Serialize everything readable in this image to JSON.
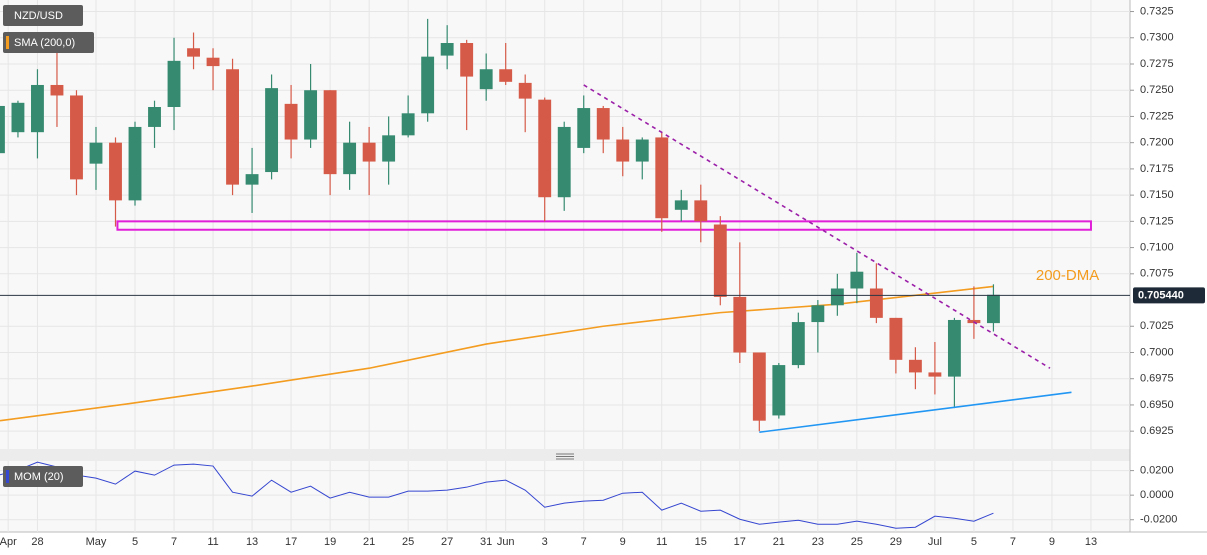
{
  "chart_data": {
    "type": "candlestick",
    "title": "NZD/USD",
    "x": [
      -1,
      0,
      1,
      2,
      3,
      4,
      5,
      6,
      7,
      8,
      9,
      10,
      11,
      12,
      13,
      14,
      15,
      16,
      17,
      18,
      19,
      20,
      21,
      22,
      23,
      24,
      25,
      26,
      27,
      28,
      29,
      30,
      31,
      32,
      33,
      34,
      35,
      36,
      37,
      38,
      39,
      40,
      41,
      42,
      43,
      44,
      45,
      46,
      47,
      48,
      49,
      50
    ],
    "open": [
      0.719,
      0.721,
      0.721,
      0.7255,
      0.7245,
      0.718,
      0.72,
      0.7145,
      0.7215,
      0.7234,
      0.729,
      0.7281,
      0.727,
      0.716,
      0.7172,
      0.7237,
      0.7203,
      0.725,
      0.717,
      0.72,
      0.7182,
      0.7207,
      0.7228,
      0.7283,
      0.7295,
      0.7251,
      0.727,
      0.7257,
      0.7241,
      0.7148,
      0.7195,
      0.7233,
      0.7203,
      0.7182,
      0.7205,
      0.7136,
      0.7145,
      0.7122,
      0.7053,
      0.7,
      0.694,
      0.6988,
      0.7029,
      0.7045,
      0.7061,
      0.7061,
      0.7033,
      0.6993,
      0.6981,
      0.6977,
      0.7031,
      0.7028
    ],
    "high": [
      0.7245,
      0.724,
      0.727,
      0.729,
      0.725,
      0.7215,
      0.7205,
      0.722,
      0.724,
      0.73,
      0.7305,
      0.729,
      0.728,
      0.7195,
      0.7265,
      0.7255,
      0.7275,
      0.725,
      0.722,
      0.7215,
      0.7225,
      0.7245,
      0.7318,
      0.7312,
      0.7298,
      0.7285,
      0.7295,
      0.7265,
      0.7243,
      0.722,
      0.7245,
      0.7235,
      0.7215,
      0.7205,
      0.721,
      0.7155,
      0.716,
      0.713,
      0.7105,
      0.7,
      0.699,
      0.7038,
      0.705,
      0.7075,
      0.7095,
      0.7085,
      0.7033,
      0.7005,
      0.701,
      0.7033,
      0.7063,
      0.7065
    ],
    "low": [
      0.718,
      0.7205,
      0.7185,
      0.7215,
      0.715,
      0.7155,
      0.712,
      0.714,
      0.7195,
      0.7212,
      0.727,
      0.725,
      0.715,
      0.7133,
      0.7165,
      0.7185,
      0.7195,
      0.715,
      0.7155,
      0.715,
      0.716,
      0.7205,
      0.722,
      0.727,
      0.7212,
      0.724,
      0.7255,
      0.721,
      0.7125,
      0.7135,
      0.719,
      0.719,
      0.7168,
      0.7165,
      0.7115,
      0.7125,
      0.7105,
      0.7045,
      0.699,
      0.6925,
      0.6937,
      0.6985,
      0.7,
      0.7035,
      0.7047,
      0.7028,
      0.698,
      0.6965,
      0.696,
      0.6947,
      0.7013,
      0.702
    ],
    "close": [
      0.7235,
      0.7238,
      0.7255,
      0.7245,
      0.7165,
      0.72,
      0.7145,
      0.7215,
      0.7234,
      0.7278,
      0.7282,
      0.7273,
      0.716,
      0.717,
      0.7252,
      0.7203,
      0.725,
      0.717,
      0.72,
      0.7182,
      0.7207,
      0.7228,
      0.7282,
      0.7295,
      0.7263,
      0.727,
      0.7258,
      0.7242,
      0.7148,
      0.7215,
      0.7233,
      0.7203,
      0.7182,
      0.7203,
      0.7128,
      0.7145,
      0.7125,
      0.7053,
      0.7,
      0.6935,
      0.6988,
      0.7029,
      0.7045,
      0.7061,
      0.7077,
      0.7033,
      0.6993,
      0.6981,
      0.6977,
      0.7031,
      0.7028,
      0.7055
    ],
    "up_color": "#358a70",
    "down_color": "#d65a48",
    "xlim": [
      -0.92,
      57.0
    ],
    "ylim": [
      0.6908,
      0.7336
    ],
    "yticks": [
      0.7325,
      {
        "value": 0.73,
        "label": "0.7300"
      },
      0.7275,
      {
        "value": 0.725,
        "label": "0.7250"
      },
      0.7225,
      {
        "value": 0.72,
        "label": "0.7200"
      },
      0.7175,
      {
        "value": 0.715,
        "label": "0.7150"
      },
      0.7125,
      {
        "value": 0.71,
        "label": "0.7100"
      },
      0.7075,
      0.7025,
      {
        "value": 0.7,
        "label": "0.7000"
      },
      0.6975,
      {
        "value": 0.695,
        "label": "0.6950"
      },
      0.6925
    ],
    "xticks": [
      {
        "value": -0.5,
        "label": "Apr"
      },
      {
        "value": 1,
        "label": "28"
      },
      {
        "value": 4,
        "label": "May"
      },
      {
        "value": 6,
        "label": "5"
      },
      {
        "value": 8,
        "label": "7"
      },
      {
        "value": 10,
        "label": "11"
      },
      {
        "value": 12,
        "label": "13"
      },
      {
        "value": 14,
        "label": "17"
      },
      {
        "value": 16,
        "label": "19"
      },
      {
        "value": 18,
        "label": "21"
      },
      {
        "value": 20,
        "label": "25"
      },
      {
        "value": 22,
        "label": "27"
      },
      {
        "value": 24,
        "label": "31"
      },
      {
        "value": 25,
        "label": "Jun"
      },
      {
        "value": 27,
        "label": "3"
      },
      {
        "value": 29,
        "label": "7"
      },
      {
        "value": 31,
        "label": "9"
      },
      {
        "value": 33,
        "label": "11"
      },
      {
        "value": 35,
        "label": "15"
      },
      {
        "value": 37,
        "label": "17"
      },
      {
        "value": 39,
        "label": "21"
      },
      {
        "value": 41,
        "label": "23"
      },
      {
        "value": 43,
        "label": "25"
      },
      {
        "value": 45,
        "label": "29"
      },
      {
        "value": 47,
        "label": "Jul"
      },
      {
        "value": 49,
        "label": "5"
      },
      {
        "value": 51,
        "label": "7"
      },
      {
        "value": 53,
        "label": "9"
      },
      {
        "value": 55,
        "label": "13"
      }
    ],
    "grid": true,
    "current_price": {
      "value": 0.70544,
      "label": "0.705440"
    },
    "sma": {
      "name": "SMA (200,0)",
      "color": "#f39c1f",
      "x": [
        -0.92,
        6,
        12,
        18,
        24,
        30,
        36,
        42,
        50
      ],
      "values": [
        0.6935,
        0.6952,
        0.6968,
        0.6985,
        0.7008,
        0.7025,
        0.7038,
        0.7046,
        0.7063
      ]
    },
    "annotations": [
      {
        "text": "200-DMA",
        "x": 53.8,
        "y": 0.7073,
        "color": "#f39c1f"
      }
    ],
    "trendlines": [
      {
        "x": [
          29,
          52.9
        ],
        "values": [
          0.7255,
          0.6985
        ],
        "color": "#9b1fa8",
        "dashed": true
      },
      {
        "x": [
          38,
          54
        ],
        "values": [
          0.6924,
          0.6962
        ],
        "color": "#2196f3",
        "dashed": false
      }
    ],
    "zone": {
      "x": [
        5.1,
        55
      ],
      "values": [
        0.7117,
        0.7125
      ],
      "color": "#e020d8"
    },
    "momentum": {
      "name": "MOM (20)",
      "color": "#3546d0",
      "values": [
        0.0163,
        0.0204,
        0.0269,
        0.0229,
        0.0163,
        0.0139,
        0.009,
        0.0196,
        0.0163,
        0.0245,
        0.0253,
        0.0237,
        0.0024,
        -0.0008,
        0.0122,
        0.0024,
        0.0073,
        -0.0024,
        0.0024,
        -0.0016,
        -0.0016,
        0.0033,
        0.0033,
        0.0041,
        0.0065,
        0.0106,
        0.0122,
        0.0041,
        -0.0098,
        -0.0065,
        -0.0049,
        -0.0041,
        0.0016,
        0.0024,
        -0.0122,
        -0.0065,
        -0.0131,
        -0.0122,
        -0.0196,
        -0.0237,
        -0.022,
        -0.0204,
        -0.0237,
        -0.0237,
        -0.0212,
        -0.0237,
        -0.0269,
        -0.0261,
        -0.0171,
        -0.0188,
        -0.0212,
        -0.0147
      ],
      "ylim": [
        -0.03,
        0.027
      ],
      "yticks": [
        {
          "value": 0.02,
          "label": "0.0200"
        },
        {
          "value": 0,
          "label": "0.0000"
        },
        {
          "value": -0.02,
          "label": "-0.0200"
        }
      ]
    }
  }
}
